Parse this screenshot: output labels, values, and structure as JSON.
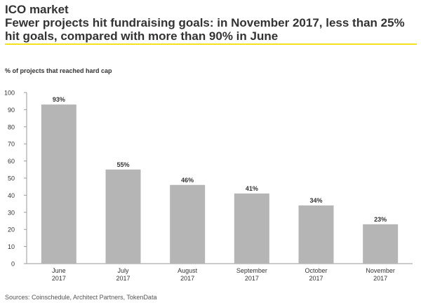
{
  "chart_data": {
    "type": "bar",
    "title": "ICO market",
    "subtitle": "Fewer projects hit fundraising goals: in November 2017, less than 25% hit goals, compared with more than 90% in June",
    "ylabel": "% of projects that reached hard cap",
    "xlabel": "",
    "ylim": [
      0,
      100
    ],
    "yticks": [
      0,
      10,
      20,
      30,
      40,
      50,
      60,
      70,
      80,
      90,
      100
    ],
    "categories": [
      [
        "June",
        "2017"
      ],
      [
        "July",
        "2017"
      ],
      [
        "August",
        "2017"
      ],
      [
        "September",
        "2017"
      ],
      [
        "October",
        "2017"
      ],
      [
        "November",
        "2017"
      ]
    ],
    "values": [
      93,
      55,
      46,
      41,
      34,
      23
    ],
    "data_labels": [
      "93%",
      "55%",
      "46%",
      "41%",
      "34%",
      "23%"
    ],
    "bar_color": "#b5b5b5",
    "accent_color": "#f5e11c",
    "grid": false,
    "source": "Sources: Coinschedule, Architect Partners, TokenData"
  }
}
